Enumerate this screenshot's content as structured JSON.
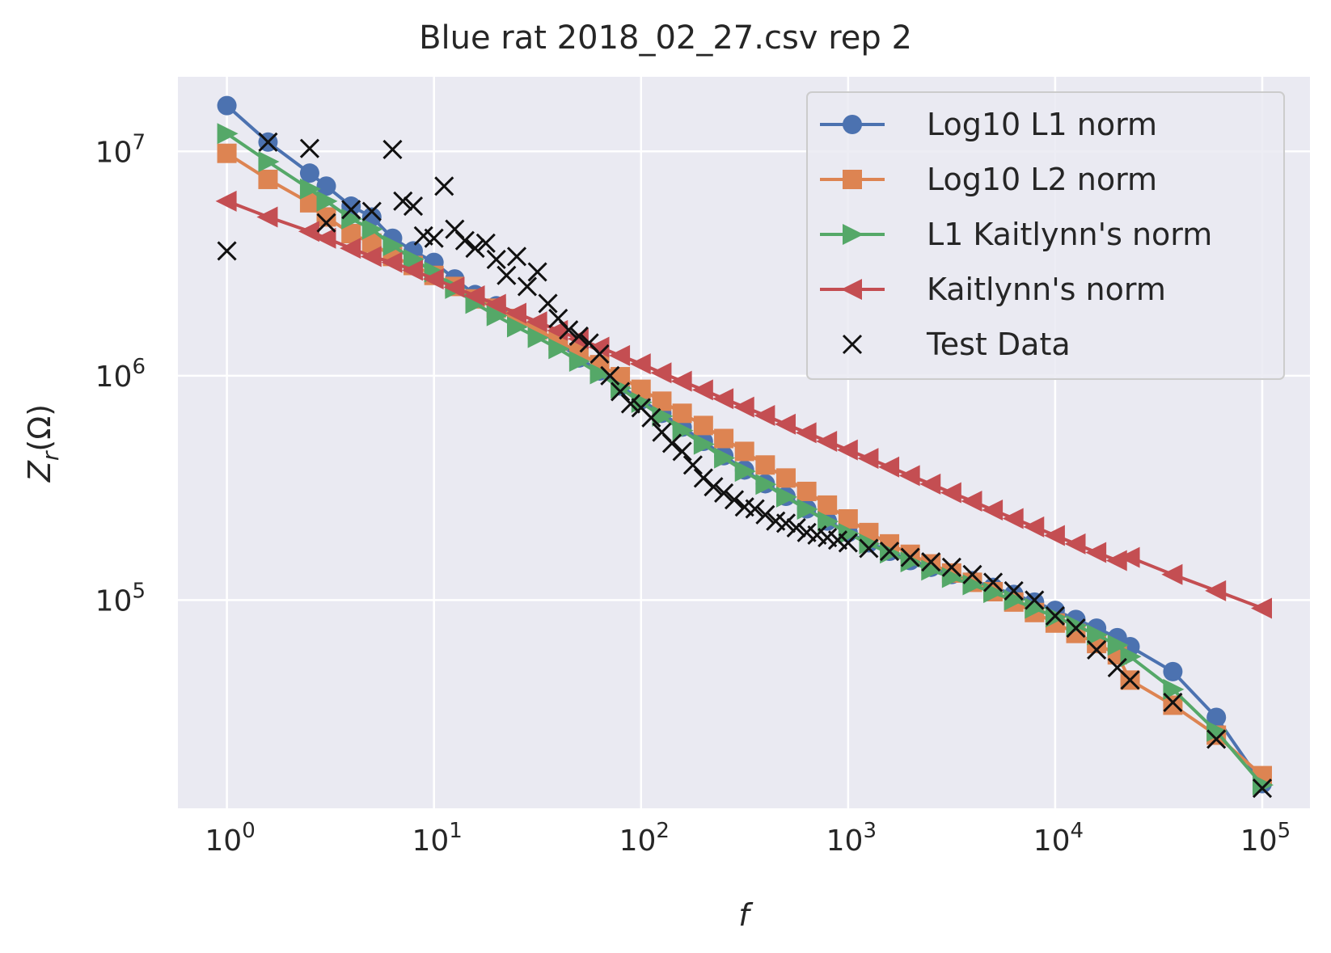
{
  "chart_data": {
    "type": "line",
    "title": "Blue rat 2018_02_27.csv rep 2",
    "xlabel": "f",
    "ylabel": "Z_r(Ω)",
    "xscale": "log",
    "yscale": "log",
    "xlim": [
      0.58,
      170000
    ],
    "ylim": [
      11800,
      21500000
    ],
    "grid": true,
    "legend_position": "top-right",
    "x_ticks": [
      {
        "value": 1,
        "base": "10",
        "exp": "0"
      },
      {
        "value": 10,
        "base": "10",
        "exp": "1"
      },
      {
        "value": 100,
        "base": "10",
        "exp": "2"
      },
      {
        "value": 1000,
        "base": "10",
        "exp": "3"
      },
      {
        "value": 10000,
        "base": "10",
        "exp": "4"
      },
      {
        "value": 100000,
        "base": "10",
        "exp": "5"
      }
    ],
    "y_ticks": [
      {
        "value": 100000,
        "base": "10",
        "exp": "5"
      },
      {
        "value": 1000000,
        "base": "10",
        "exp": "6"
      },
      {
        "value": 10000000,
        "base": "10",
        "exp": "7"
      }
    ],
    "series": [
      {
        "name": "Log10 L1 norm",
        "color": "#4c72b0",
        "marker": "circle",
        "points": [
          [
            1,
            16000000
          ],
          [
            1.58,
            11000000
          ],
          [
            2.51,
            8000000
          ],
          [
            3.02,
            7000000
          ],
          [
            3.98,
            5700000
          ],
          [
            5.01,
            5100000
          ],
          [
            6.31,
            4100000
          ],
          [
            7.94,
            3600000
          ],
          [
            10,
            3200000
          ],
          [
            12.6,
            2700000
          ],
          [
            15.8,
            2300000
          ],
          [
            20,
            2050000
          ],
          [
            25.1,
            1800000
          ],
          [
            31.6,
            1600000
          ],
          [
            39.8,
            1400000
          ],
          [
            50.1,
            1200000
          ],
          [
            63.1,
            1050000
          ],
          [
            79.4,
            900000
          ],
          [
            100,
            780000
          ],
          [
            126,
            680000
          ],
          [
            158,
            590000
          ],
          [
            200,
            510000
          ],
          [
            251,
            440000
          ],
          [
            316,
            380000
          ],
          [
            398,
            330000
          ],
          [
            501,
            290000
          ],
          [
            631,
            255000
          ],
          [
            794,
            225000
          ],
          [
            1000,
            200000
          ],
          [
            1259,
            180000
          ],
          [
            1585,
            165000
          ],
          [
            1995,
            150000
          ],
          [
            2512,
            140000
          ],
          [
            3162,
            130000
          ],
          [
            3981,
            122000
          ],
          [
            5012,
            114000
          ],
          [
            6310,
            106000
          ],
          [
            7943,
            98000
          ],
          [
            10000,
            90000
          ],
          [
            12589,
            82000
          ],
          [
            15849,
            75000
          ],
          [
            19953,
            68000
          ],
          [
            23000,
            62000
          ],
          [
            37000,
            48000
          ],
          [
            60000,
            30000
          ],
          [
            100000,
            15200
          ]
        ]
      },
      {
        "name": "Log10 L2 norm",
        "color": "#dd8452",
        "marker": "square",
        "points": [
          [
            1,
            9800000
          ],
          [
            1.58,
            7500000
          ],
          [
            2.51,
            5900000
          ],
          [
            3.02,
            5100000
          ],
          [
            3.98,
            4300000
          ],
          [
            5.01,
            3900000
          ],
          [
            6.31,
            3400000
          ],
          [
            7.94,
            3100000
          ],
          [
            10,
            2800000
          ],
          [
            12.6,
            2500000
          ],
          [
            15.8,
            2200000
          ],
          [
            20,
            2000000
          ],
          [
            25.1,
            1800000
          ],
          [
            31.6,
            1600000
          ],
          [
            39.8,
            1430000
          ],
          [
            50.1,
            1270000
          ],
          [
            63.1,
            1120000
          ],
          [
            79.4,
            990000
          ],
          [
            100,
            870000
          ],
          [
            126,
            770000
          ],
          [
            158,
            680000
          ],
          [
            200,
            600000
          ],
          [
            251,
            525000
          ],
          [
            316,
            460000
          ],
          [
            398,
            400000
          ],
          [
            501,
            350000
          ],
          [
            631,
            305000
          ],
          [
            794,
            265000
          ],
          [
            1000,
            230000
          ],
          [
            1259,
            200000
          ],
          [
            1585,
            178000
          ],
          [
            1995,
            160000
          ],
          [
            2512,
            145000
          ],
          [
            3162,
            132000
          ],
          [
            3981,
            120000
          ],
          [
            5012,
            109000
          ],
          [
            6310,
            98000
          ],
          [
            7943,
            88000
          ],
          [
            10000,
            79000
          ],
          [
            12589,
            71000
          ],
          [
            15849,
            64000
          ],
          [
            19953,
            57000
          ],
          [
            23000,
            44000
          ],
          [
            37000,
            34000
          ],
          [
            60000,
            25000
          ],
          [
            100000,
            16500
          ]
        ]
      },
      {
        "name": "L1 Kaitlynn's norm",
        "color": "#55a868",
        "marker": "triangle-right",
        "points": [
          [
            1,
            12000000
          ],
          [
            1.58,
            9000000
          ],
          [
            2.51,
            6800000
          ],
          [
            3.02,
            6000000
          ],
          [
            3.98,
            5000000
          ],
          [
            5.01,
            4500000
          ],
          [
            6.31,
            3800000
          ],
          [
            7.94,
            3300000
          ],
          [
            10,
            2900000
          ],
          [
            12.6,
            2450000
          ],
          [
            15.8,
            2100000
          ],
          [
            20,
            1850000
          ],
          [
            25.1,
            1650000
          ],
          [
            31.6,
            1480000
          ],
          [
            39.8,
            1320000
          ],
          [
            50.1,
            1160000
          ],
          [
            63.1,
            1020000
          ],
          [
            79.4,
            880000
          ],
          [
            100,
            760000
          ],
          [
            126,
            660000
          ],
          [
            158,
            570000
          ],
          [
            200,
            495000
          ],
          [
            251,
            430000
          ],
          [
            316,
            375000
          ],
          [
            398,
            328000
          ],
          [
            501,
            288000
          ],
          [
            631,
            254000
          ],
          [
            794,
            224000
          ],
          [
            1000,
            198000
          ],
          [
            1259,
            178000
          ],
          [
            1585,
            162000
          ],
          [
            1995,
            148000
          ],
          [
            2512,
            136000
          ],
          [
            3162,
            126000
          ],
          [
            3981,
            117000
          ],
          [
            5012,
            108000
          ],
          [
            6310,
            100000
          ],
          [
            7943,
            92000
          ],
          [
            10000,
            84000
          ],
          [
            12589,
            77000
          ],
          [
            15849,
            70000
          ],
          [
            19953,
            63000
          ],
          [
            23000,
            56000
          ],
          [
            37000,
            40000
          ],
          [
            60000,
            26000
          ],
          [
            100000,
            15000
          ]
        ]
      },
      {
        "name": "Kaitlynn's norm",
        "color": "#c44e52",
        "marker": "triangle-left",
        "points": [
          [
            1,
            6000000
          ],
          [
            1.58,
            5100000
          ],
          [
            2.51,
            4400000
          ],
          [
            3.02,
            4100000
          ],
          [
            3.98,
            3700000
          ],
          [
            5.01,
            3400000
          ],
          [
            6.31,
            3200000
          ],
          [
            7.94,
            2950000
          ],
          [
            10,
            2700000
          ],
          [
            12.6,
            2480000
          ],
          [
            15.8,
            2270000
          ],
          [
            20,
            2080000
          ],
          [
            25.1,
            1900000
          ],
          [
            31.6,
            1740000
          ],
          [
            39.8,
            1590000
          ],
          [
            50.1,
            1460000
          ],
          [
            63.1,
            1340000
          ],
          [
            79.4,
            1230000
          ],
          [
            100,
            1130000
          ],
          [
            126,
            1030000
          ],
          [
            158,
            945000
          ],
          [
            200,
            865000
          ],
          [
            251,
            790000
          ],
          [
            316,
            725000
          ],
          [
            398,
            665000
          ],
          [
            501,
            608000
          ],
          [
            631,
            557000
          ],
          [
            794,
            510000
          ],
          [
            1000,
            467000
          ],
          [
            1259,
            428000
          ],
          [
            1585,
            392000
          ],
          [
            1995,
            359000
          ],
          [
            2512,
            329000
          ],
          [
            3162,
            301000
          ],
          [
            3981,
            276000
          ],
          [
            5012,
            252000
          ],
          [
            6310,
            231000
          ],
          [
            7943,
            212000
          ],
          [
            10000,
            194000
          ],
          [
            12589,
            178000
          ],
          [
            15849,
            163000
          ],
          [
            19953,
            150000
          ],
          [
            23000,
            155000
          ],
          [
            37000,
            130000
          ],
          [
            60000,
            110000
          ],
          [
            100000,
            92000
          ]
        ]
      },
      {
        "name": "Test Data",
        "color": "#111111",
        "marker": "x",
        "points": [
          [
            1,
            3600000
          ],
          [
            1.58,
            11000000
          ],
          [
            2.51,
            10300000
          ],
          [
            3.02,
            4800000
          ],
          [
            3.98,
            5500000
          ],
          [
            5.01,
            5400000
          ],
          [
            6.31,
            10200000
          ],
          [
            7.08,
            6000000
          ],
          [
            7.94,
            5700000
          ],
          [
            8.9,
            4200000
          ],
          [
            10,
            4100000
          ],
          [
            11.2,
            7000000
          ],
          [
            12.6,
            4500000
          ],
          [
            14.1,
            4000000
          ],
          [
            15.8,
            3700000
          ],
          [
            17.8,
            3900000
          ],
          [
            20,
            3300000
          ],
          [
            22.4,
            2800000
          ],
          [
            25.1,
            3400000
          ],
          [
            28.2,
            2500000
          ],
          [
            31.6,
            2900000
          ],
          [
            35.5,
            2100000
          ],
          [
            39.8,
            1800000
          ],
          [
            44.7,
            1600000
          ],
          [
            50.1,
            1500000
          ],
          [
            56.2,
            1400000
          ],
          [
            63.1,
            1250000
          ],
          [
            70.8,
            1000000
          ],
          [
            79.4,
            850000
          ],
          [
            89.1,
            750000
          ],
          [
            100,
            720000
          ],
          [
            112,
            650000
          ],
          [
            126,
            560000
          ],
          [
            141,
            500000
          ],
          [
            158,
            460000
          ],
          [
            178,
            400000
          ],
          [
            200,
            350000
          ],
          [
            224,
            320000
          ],
          [
            251,
            300000
          ],
          [
            282,
            280000
          ],
          [
            316,
            260000
          ],
          [
            355,
            255000
          ],
          [
            398,
            240000
          ],
          [
            447,
            225000
          ],
          [
            501,
            220000
          ],
          [
            562,
            210000
          ],
          [
            631,
            200000
          ],
          [
            708,
            195000
          ],
          [
            794,
            190000
          ],
          [
            891,
            185000
          ],
          [
            1000,
            180000
          ],
          [
            1259,
            170000
          ],
          [
            1585,
            165000
          ],
          [
            1995,
            155000
          ],
          [
            2512,
            148000
          ],
          [
            3162,
            140000
          ],
          [
            3981,
            130000
          ],
          [
            5012,
            120000
          ],
          [
            6310,
            110000
          ],
          [
            7943,
            100000
          ],
          [
            10000,
            85000
          ],
          [
            12589,
            75000
          ],
          [
            15849,
            60000
          ],
          [
            19953,
            50000
          ],
          [
            23000,
            44000
          ],
          [
            37000,
            35000
          ],
          [
            60000,
            24000
          ],
          [
            100000,
            14500
          ]
        ]
      }
    ]
  }
}
